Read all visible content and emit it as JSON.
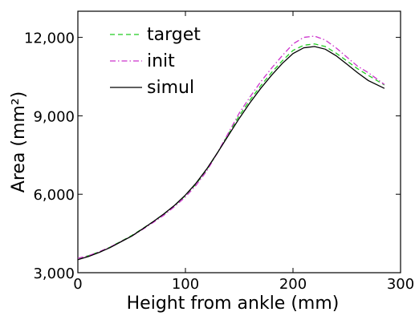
{
  "chart_data": {
    "type": "line",
    "xlabel": "Height from ankle (mm)",
    "ylabel": "Area (mm²)",
    "xlim": [
      0,
      300
    ],
    "ylim": [
      3000,
      13000
    ],
    "x_ticks": [
      0,
      100,
      200,
      300
    ],
    "x_tick_labels": [
      "0",
      "100",
      "200",
      "300"
    ],
    "y_ticks": [
      3000,
      6000,
      9000,
      12000
    ],
    "y_tick_labels": [
      "3,000",
      "6,000",
      "9,000",
      "12,000"
    ],
    "grid": false,
    "legend_position": "top-left",
    "x": [
      0,
      10,
      20,
      30,
      40,
      50,
      60,
      70,
      80,
      90,
      100,
      110,
      120,
      130,
      140,
      150,
      160,
      170,
      180,
      190,
      200,
      210,
      220,
      230,
      240,
      250,
      260,
      270,
      280,
      285
    ],
    "series": [
      {
        "name": "target",
        "color": "#22cc22",
        "dash": "dashed",
        "values": [
          3550,
          3650,
          3800,
          3980,
          4200,
          4420,
          4680,
          4950,
          5240,
          5570,
          5950,
          6400,
          6950,
          7600,
          8300,
          9000,
          9600,
          10150,
          10650,
          11100,
          11500,
          11700,
          11750,
          11650,
          11400,
          11100,
          10800,
          10550,
          10300,
          10180
        ]
      },
      {
        "name": "init",
        "color": "#cc33cc",
        "dash": "dashdot",
        "values": [
          3550,
          3650,
          3800,
          3980,
          4190,
          4400,
          4650,
          4920,
          5200,
          5530,
          5900,
          6350,
          6900,
          7600,
          8350,
          9100,
          9720,
          10300,
          10820,
          11300,
          11750,
          12000,
          12050,
          11900,
          11600,
          11250,
          10900,
          10650,
          10350,
          10200
        ]
      },
      {
        "name": "simul",
        "color": "#000000",
        "dash": "solid",
        "values": [
          3500,
          3620,
          3780,
          3960,
          4180,
          4400,
          4670,
          4950,
          5250,
          5580,
          5970,
          6430,
          6980,
          7600,
          8250,
          8900,
          9500,
          10050,
          10550,
          11000,
          11380,
          11600,
          11650,
          11550,
          11300,
          10980,
          10650,
          10350,
          10150,
          10050
        ]
      }
    ]
  }
}
